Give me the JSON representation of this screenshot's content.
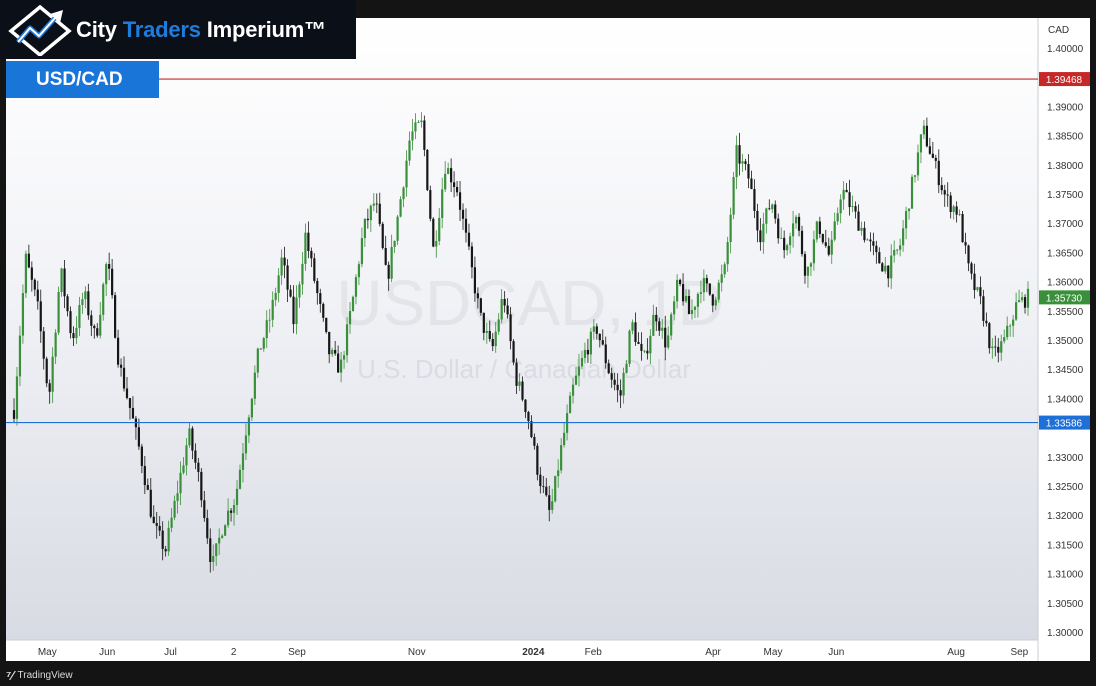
{
  "brand": {
    "part1": "City ",
    "part2": "Traders",
    "part3": " Imperium™"
  },
  "pair_tag": "USD/CAD",
  "watermark": {
    "symbol": "USDCAD, 1D",
    "description": "U.S. Dollar / Canadian Dollar"
  },
  "footer": {
    "label": "TradingView"
  },
  "colors": {
    "up": "#3a8f3a",
    "down": "#161616",
    "resistance": "#c62828",
    "support": "#1e6fd6",
    "brand_blue": "#1a75d8"
  },
  "chart_data": {
    "type": "candlestick",
    "title": "USDCAD, 1D",
    "subtitle": "U.S. Dollar / Canadian Dollar",
    "currency": "CAD",
    "ylim": [
      1.2975,
      1.4075
    ],
    "y_ticks": [
      1.4,
      1.39,
      1.385,
      1.38,
      1.375,
      1.37,
      1.365,
      1.36,
      1.355,
      1.35,
      1.345,
      1.34,
      1.33,
      1.325,
      1.32,
      1.315,
      1.31,
      1.305,
      1.3
    ],
    "x_ticks": [
      {
        "label": "May",
        "at": 0.05
      },
      {
        "label": "Jun",
        "at": 0.14
      },
      {
        "label": "Jul",
        "at": 0.235
      },
      {
        "label": "2",
        "at": 0.33
      },
      {
        "label": "Sep",
        "at": 0.425
      },
      {
        "label": "Nov",
        "at": 0.605
      },
      {
        "label": "2024",
        "at": 0.78,
        "bold": true
      },
      {
        "label": "Feb",
        "at": 0.87
      },
      {
        "label": "Apr",
        "at": 1.05
      },
      {
        "label": "May",
        "at": 1.14
      },
      {
        "label": "Jun",
        "at": 1.235
      },
      {
        "label": "Aug",
        "at": 1.415
      },
      {
        "label": "Sep",
        "at": 1.51
      }
    ],
    "levels": [
      {
        "name": "resistance",
        "value": 1.39468,
        "label": "1.39468",
        "color": "#c62828"
      },
      {
        "name": "support",
        "value": 1.33586,
        "label": "1.33586",
        "color": "#1e6fd6"
      }
    ],
    "last_price": {
      "value": 1.3573,
      "label": "1.35730",
      "color": "#3a8f3a"
    },
    "path": [
      1.338,
      1.364,
      1.356,
      1.34,
      1.362,
      1.35,
      1.358,
      1.35,
      1.364,
      1.346,
      1.338,
      1.329,
      1.318,
      1.314,
      1.324,
      1.334,
      1.325,
      1.311,
      1.319,
      1.323,
      1.336,
      1.348,
      1.354,
      1.364,
      1.353,
      1.368,
      1.358,
      1.348,
      1.345,
      1.356,
      1.369,
      1.374,
      1.36,
      1.372,
      1.385,
      1.387,
      1.365,
      1.38,
      1.376,
      1.365,
      1.354,
      1.348,
      1.358,
      1.344,
      1.338,
      1.327,
      1.32,
      1.332,
      1.342,
      1.348,
      1.352,
      1.345,
      1.34,
      1.353,
      1.346,
      1.355,
      1.349,
      1.36,
      1.354,
      1.36,
      1.357,
      1.362,
      1.382,
      1.378,
      1.368,
      1.374,
      1.365,
      1.372,
      1.361,
      1.37,
      1.364,
      1.376,
      1.372,
      1.368,
      1.364,
      1.362,
      1.366,
      1.376,
      1.386,
      1.38,
      1.374,
      1.372,
      1.361,
      1.356,
      1.347,
      1.35,
      1.356,
      1.3573
    ],
    "start_x_data": 0.0,
    "end_x_data": 1.523
  }
}
